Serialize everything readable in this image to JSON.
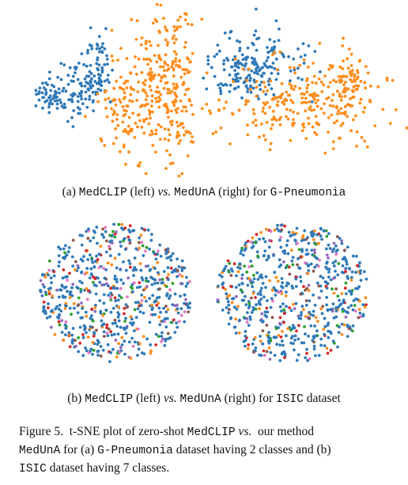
{
  "colors": {
    "class_blue": "#2f79b8",
    "class_orange": "#ff8c1a",
    "isic_palette": [
      "#2f79b8",
      "#ff8c1a",
      "#2ca02c",
      "#d62728",
      "#9467bd",
      "#e377c2",
      "#8c564b"
    ]
  },
  "subcaption_a": {
    "prefix": "(a) ",
    "method1": "MedCLIP",
    "mid1": " (left) ",
    "vs": "vs.",
    "space": " ",
    "method2": "MedUnA",
    "mid2": " (right) for ",
    "dataset": "G-Pneumonia",
    "suffix": ""
  },
  "subcaption_b": {
    "prefix": "(b) ",
    "method1": "MedCLIP",
    "mid1": " (left) ",
    "vs": "vs.",
    "space": " ",
    "method2": "MedUnA",
    "mid2": " (right) for ",
    "dataset": "ISIC",
    "suffix": " dataset"
  },
  "figure_caption": {
    "line1": {
      "label": "Figure 5.",
      "text1": "  t-SNE plot of zero-shot ",
      "method1": "MedCLIP",
      "text2": " ",
      "vs": "vs.",
      "text3": "  our method"
    },
    "line2": {
      "method2": "MedUnA",
      "text1": " for (a) ",
      "dataset1": "G-Pneumonia",
      "text2": " dataset having 2 classes and (b)"
    },
    "line3": {
      "dataset2": "ISIC",
      "text1": " dataset having 7 classes."
    }
  }
}
